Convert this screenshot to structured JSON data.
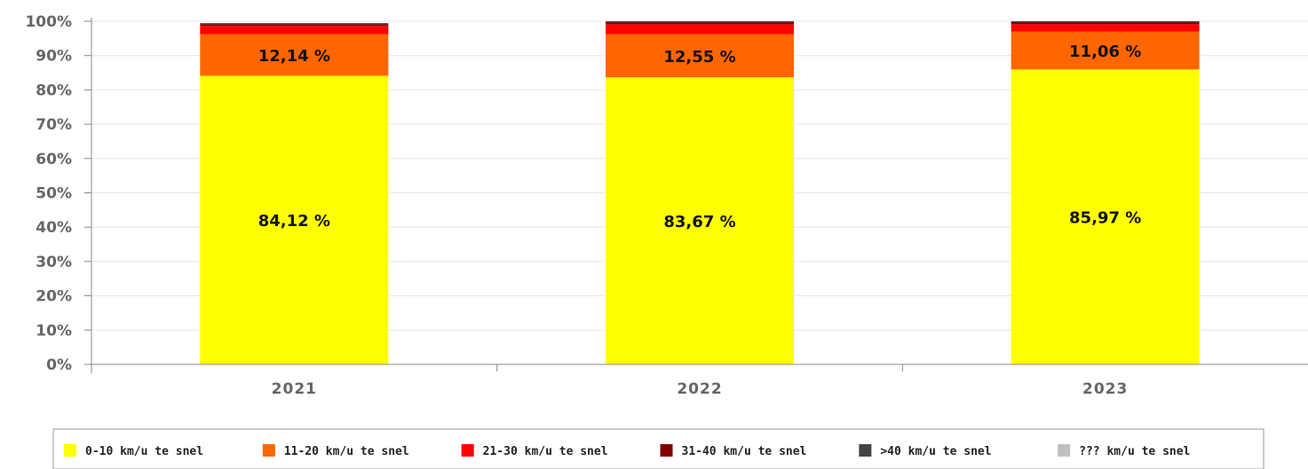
{
  "chart_data": {
    "type": "bar",
    "stacked": true,
    "categories": [
      "2021",
      "2022",
      "2023"
    ],
    "ylim": [
      0,
      100
    ],
    "y_ticks": [
      0,
      10,
      20,
      30,
      40,
      50,
      60,
      70,
      80,
      90,
      100
    ],
    "y_tick_labels": [
      "0%",
      "10%",
      "20%",
      "30%",
      "40%",
      "50%",
      "60%",
      "70%",
      "80%",
      "90%",
      "100%"
    ],
    "grid": true,
    "legend_position": "bottom",
    "series": [
      {
        "name": "0-10 km/u  te snel",
        "color": "#ffff00",
        "values": [
          84.12,
          83.67,
          85.97
        ],
        "data_labels": [
          "84,12 %",
          "83,67 %",
          "85,97 %"
        ]
      },
      {
        "name": "11-20 km/u  te snel",
        "color": "#ff6600",
        "values": [
          12.14,
          12.55,
          11.06
        ],
        "data_labels": [
          "12,14 %",
          "12,55 %",
          "11,06 %"
        ]
      },
      {
        "name": "21-30 km/u  te snel",
        "color": "#ff0000",
        "values": [
          2.4,
          2.9,
          2.1
        ],
        "data_labels": []
      },
      {
        "name": "31-40 km/u  te snel",
        "color": "#800000",
        "values": [
          0.5,
          0.6,
          0.6
        ],
        "data_labels": []
      },
      {
        "name": ">40 km/u  te snel",
        "color": "#444444",
        "values": [
          0.3,
          0.3,
          0.3
        ],
        "data_labels": []
      },
      {
        "name": "??? km/u  te snel",
        "color": "#c0c0c0",
        "values": [
          0,
          0,
          0
        ],
        "data_labels": []
      }
    ]
  }
}
